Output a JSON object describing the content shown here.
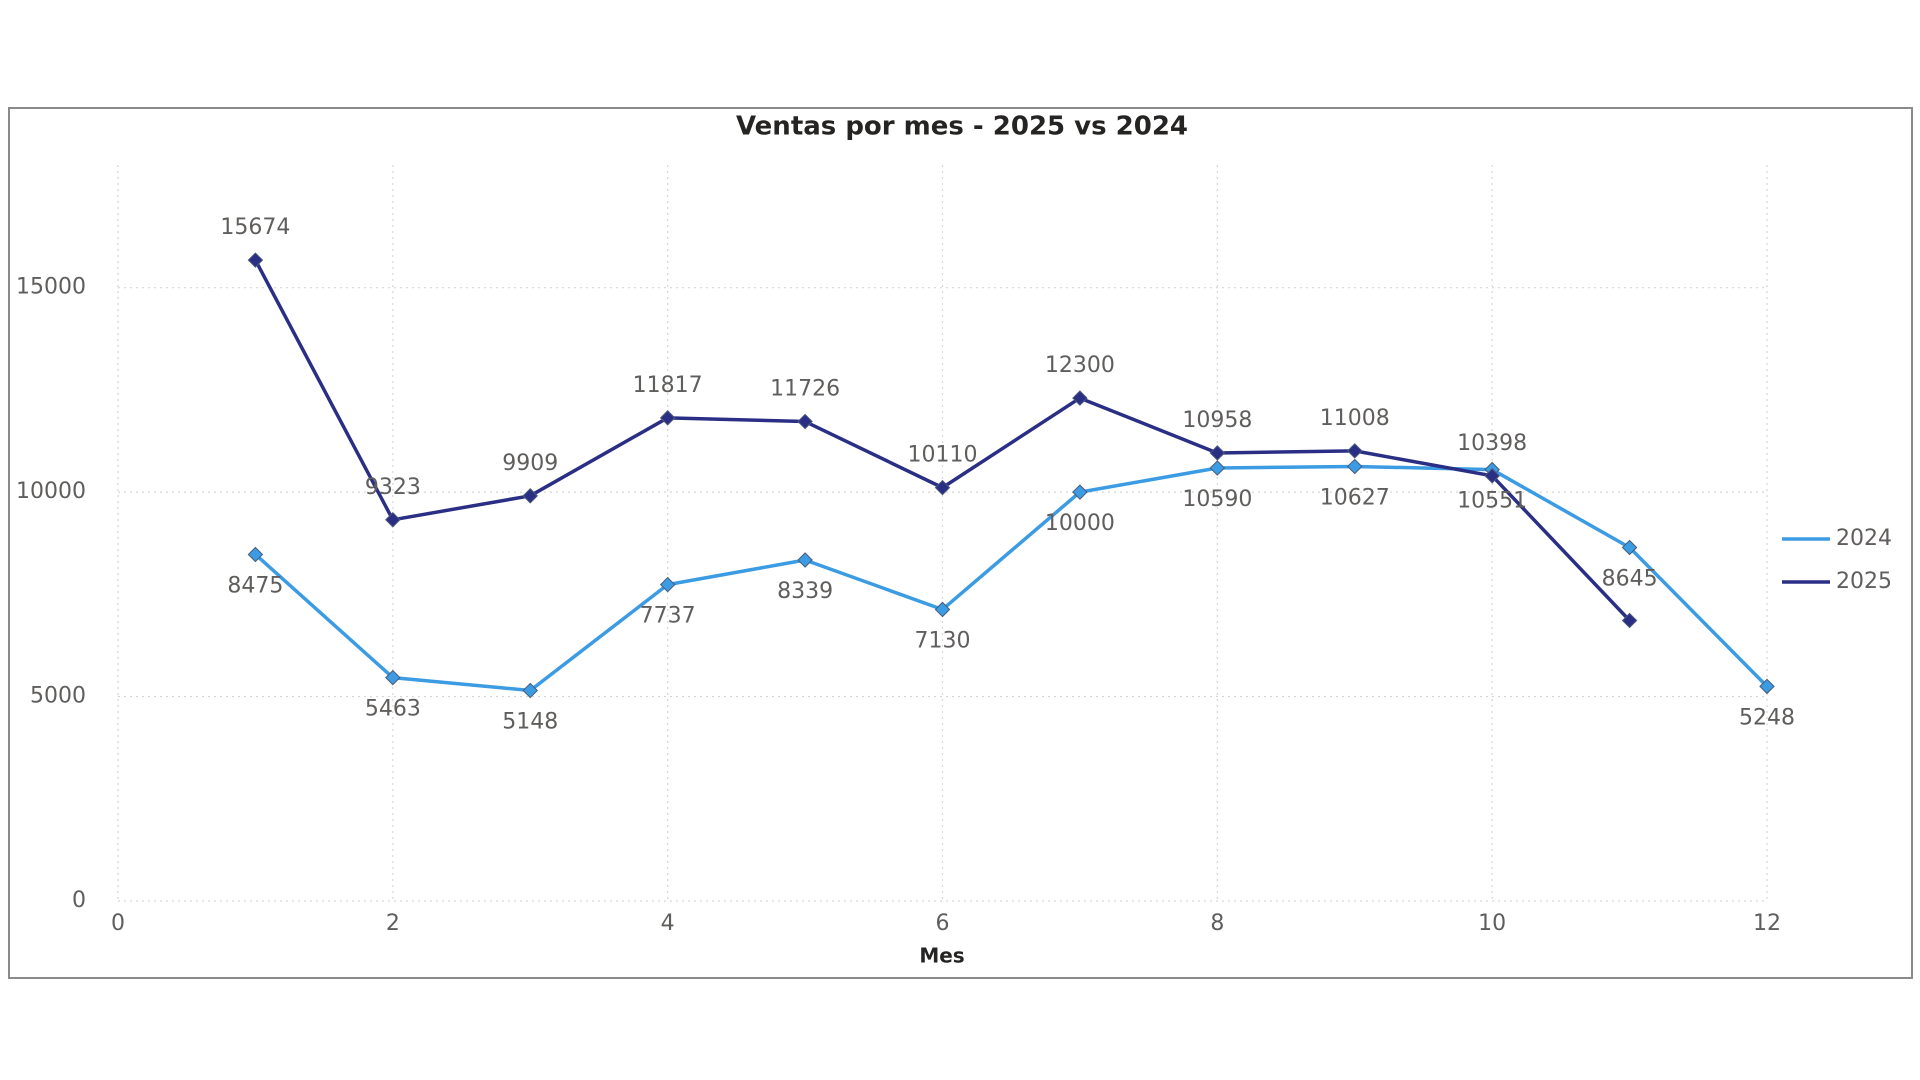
{
  "chart_data": {
    "type": "line",
    "title": "Ventas por mes - 2025 vs 2024",
    "x_label": "Mes",
    "x": [
      1,
      2,
      3,
      4,
      5,
      6,
      7,
      8,
      9,
      10,
      11,
      12
    ],
    "series": [
      {
        "name": "2024",
        "color": "#3b9be3",
        "values": [
          8475,
          5463,
          5148,
          7737,
          8339,
          7130,
          10000,
          10590,
          10627,
          10551,
          8645,
          5248
        ]
      },
      {
        "name": "2025",
        "color": "#2a2f85",
        "values": [
          15674,
          9323,
          9909,
          11817,
          11726,
          10110,
          12300,
          10958,
          11008,
          10398,
          6860,
          null
        ],
        "value_labels": [
          "15674",
          "9323",
          "9909",
          "11817",
          "11726",
          "10110",
          "12300",
          "10958",
          "11008",
          "10398",
          null,
          null
        ]
      }
    ],
    "xlim": [
      0,
      12
    ],
    "xticks": [
      0,
      2,
      4,
      6,
      8,
      10,
      12
    ],
    "ylim": [
      0,
      18000
    ],
    "yticks": [
      0,
      5000,
      10000,
      15000
    ],
    "grid": true,
    "legend": "right"
  }
}
